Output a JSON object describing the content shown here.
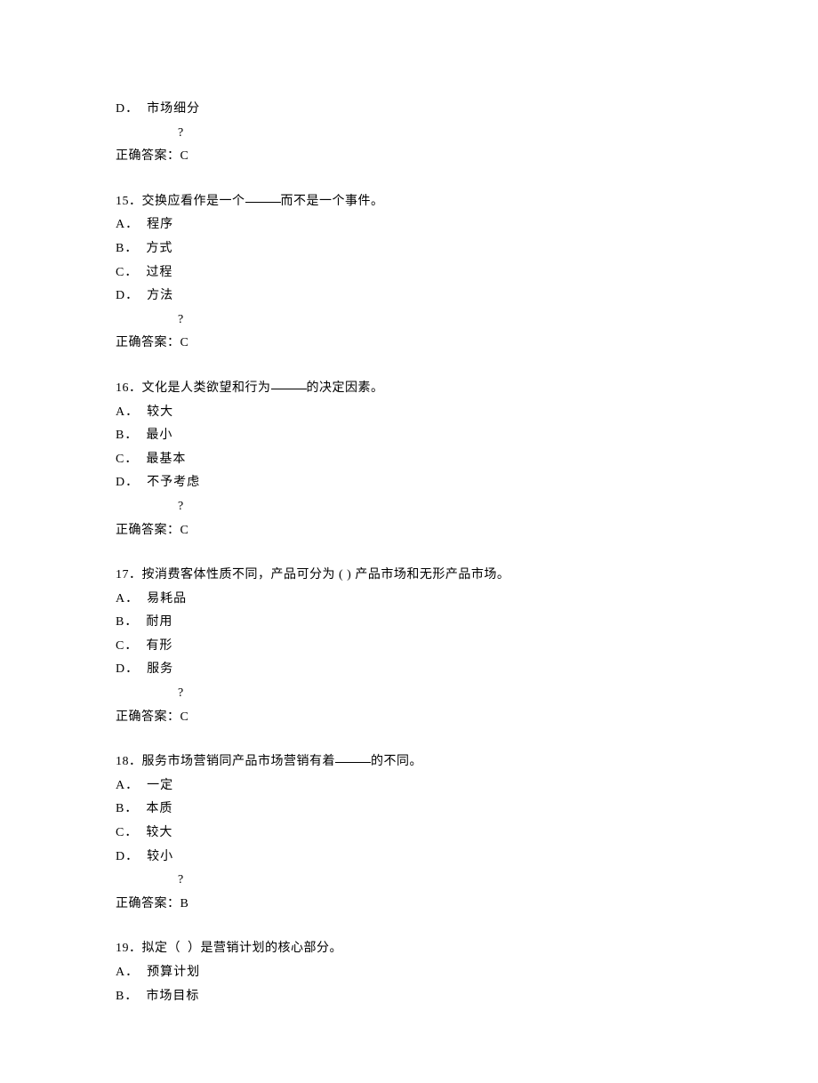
{
  "questions": [
    {
      "number": "",
      "stem_prefix": "",
      "stem_suffix": "",
      "stem_full": "",
      "options": [
        {
          "letter": "D",
          "text": "市场细分"
        }
      ],
      "qmark": "?",
      "answer_label": "正确答案：",
      "answer": "C",
      "partial": true
    },
    {
      "number": "15",
      "stem_prefix": "交换应看作是一个",
      "stem_suffix": "而不是一个事件。",
      "has_blank": true,
      "options": [
        {
          "letter": "A",
          "text": "程序"
        },
        {
          "letter": "B",
          "text": "方式"
        },
        {
          "letter": "C",
          "text": "过程"
        },
        {
          "letter": "D",
          "text": "方法"
        }
      ],
      "qmark": "?",
      "answer_label": "正确答案：",
      "answer": "C"
    },
    {
      "number": "16",
      "stem_prefix": "文化是人类欲望和行为",
      "stem_suffix": "的决定因素。",
      "has_blank": true,
      "options": [
        {
          "letter": "A",
          "text": "较大"
        },
        {
          "letter": "B",
          "text": "最小"
        },
        {
          "letter": "C",
          "text": "最基本"
        },
        {
          "letter": "D",
          "text": "不予考虑"
        }
      ],
      "qmark": "?",
      "answer_label": "正确答案：",
      "answer": "C"
    },
    {
      "number": "17",
      "stem_full": "按消费客体性质不同，产品可分为 ( ) 产品市场和无形产品市场。",
      "has_blank": false,
      "options": [
        {
          "letter": "A",
          "text": "易耗品"
        },
        {
          "letter": "B",
          "text": "耐用"
        },
        {
          "letter": "C",
          "text": "有形"
        },
        {
          "letter": "D",
          "text": "服务"
        }
      ],
      "qmark": "?",
      "answer_label": "正确答案：",
      "answer": "C"
    },
    {
      "number": "18",
      "stem_prefix": "服务市场营销同产品市场营销有着",
      "stem_suffix": "的不同。",
      "has_blank": true,
      "options": [
        {
          "letter": "A",
          "text": "一定"
        },
        {
          "letter": "B",
          "text": "本质"
        },
        {
          "letter": "C",
          "text": "较大"
        },
        {
          "letter": "D",
          "text": "较小"
        }
      ],
      "qmark": "?",
      "answer_label": "正确答案：",
      "answer": "B"
    },
    {
      "number": "19",
      "stem_full": "拟定（  ）是营销计划的核心部分。",
      "has_blank": false,
      "options": [
        {
          "letter": "A",
          "text": "预算计划"
        },
        {
          "letter": "B",
          "text": "市场目标"
        }
      ],
      "qmark": "",
      "answer_label": "",
      "answer": "",
      "no_answer": true
    }
  ]
}
